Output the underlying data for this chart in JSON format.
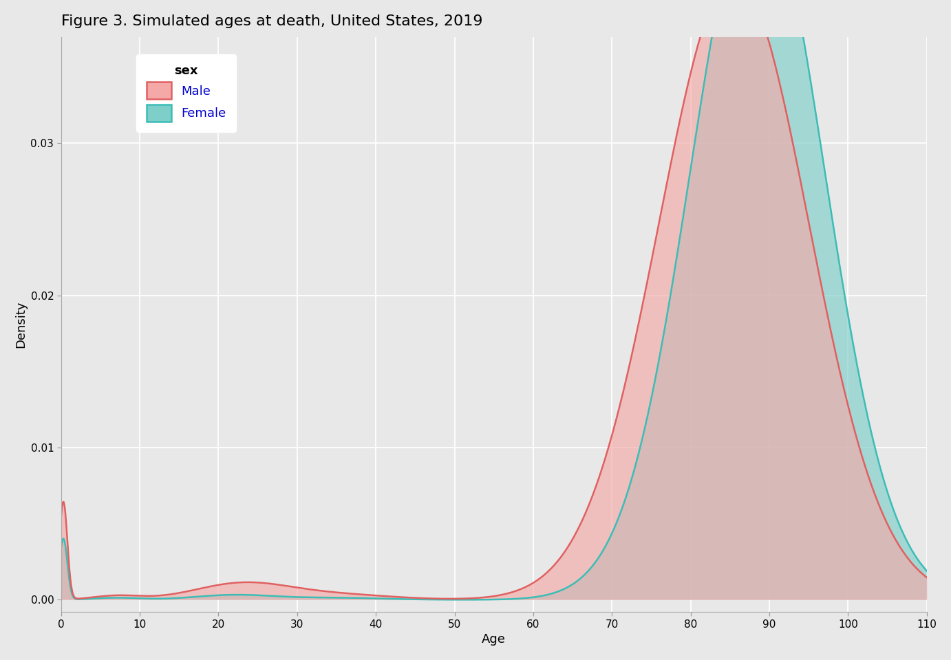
{
  "title": "Figure 3. Simulated ages at death, United States, 2019",
  "xlabel": "Age",
  "ylabel": "Density",
  "xlim": [
    0,
    110
  ],
  "ylim": [
    -0.0008,
    0.037
  ],
  "xticks": [
    0,
    10,
    20,
    30,
    40,
    50,
    60,
    70,
    80,
    90,
    100,
    110
  ],
  "yticks": [
    0.0,
    0.01,
    0.02,
    0.03
  ],
  "ytick_labels": [
    "0.00",
    "0.01",
    "0.02",
    "0.03"
  ],
  "bg_color": "#E8E8E8",
  "grid_color": "#FFFFFF",
  "male_fill_color": "#F4A9A8",
  "male_line_color": "#E06060",
  "female_fill_color": "#7ECECA",
  "female_line_color": "#3BBDB5",
  "fill_alpha": 0.65,
  "legend_title": "sex",
  "legend_labels": [
    "Male",
    "Female"
  ],
  "legend_text_color": "#0000CC",
  "title_fontsize": 16,
  "axis_label_fontsize": 13,
  "tick_fontsize": 11,
  "legend_fontsize": 12
}
